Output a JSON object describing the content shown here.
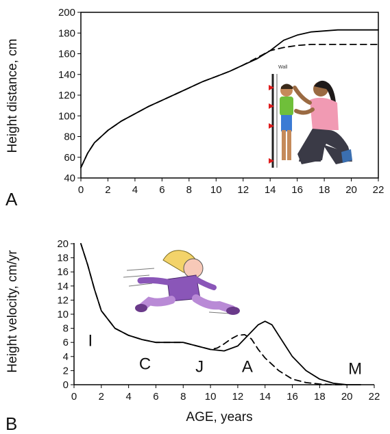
{
  "chart_data": [
    {
      "type": "line",
      "panel_label": "A",
      "ylabel": "Height distance, cm",
      "xlabel": "",
      "xlim": [
        0,
        22
      ],
      "ylim": [
        40,
        200
      ],
      "xticks": [
        0,
        2,
        4,
        6,
        8,
        10,
        12,
        14,
        16,
        18,
        20,
        22
      ],
      "yticks": [
        40,
        60,
        80,
        100,
        120,
        140,
        160,
        180,
        200
      ],
      "series": [
        {
          "style": "solid",
          "x": [
            0,
            0.5,
            1,
            1.5,
            2,
            3,
            4,
            5,
            6,
            7,
            8,
            9,
            10,
            11,
            12,
            13,
            14,
            14.5,
            15,
            16,
            17,
            18,
            19,
            20,
            21,
            22
          ],
          "y": [
            50,
            64,
            74,
            80,
            86,
            95,
            102,
            109,
            115,
            121,
            127,
            133,
            138,
            143,
            149,
            155,
            163,
            168,
            173,
            178,
            181,
            182,
            183,
            183,
            183,
            183
          ]
        },
        {
          "style": "dashed",
          "x": [
            0,
            0.5,
            1,
            1.5,
            2,
            3,
            4,
            5,
            6,
            7,
            8,
            9,
            10,
            11,
            12,
            13,
            14,
            15,
            16,
            17,
            18,
            20,
            22
          ],
          "y": [
            50,
            64,
            74,
            80,
            86,
            95,
            102,
            109,
            115,
            121,
            127,
            133,
            138,
            143,
            149,
            156,
            163,
            166,
            168,
            169,
            169,
            169,
            169
          ]
        }
      ],
      "illustration": "child-measuring-height-icon",
      "illustration_text": "Wall"
    },
    {
      "type": "line",
      "panel_label": "B",
      "ylabel": "Height velocity, cm/yr",
      "xlabel": "AGE, years",
      "xlim": [
        0,
        22
      ],
      "ylim": [
        0,
        20
      ],
      "xticks": [
        0,
        2,
        4,
        6,
        8,
        10,
        12,
        14,
        16,
        18,
        20,
        22
      ],
      "yticks": [
        0,
        2,
        4,
        6,
        8,
        10,
        12,
        14,
        16,
        18,
        20
      ],
      "series": [
        {
          "style": "solid",
          "x": [
            0.5,
            1,
            1.5,
            2,
            3,
            4,
            5,
            6,
            7,
            8,
            9,
            10,
            11,
            12,
            13,
            13.5,
            14,
            14.5,
            15,
            16,
            17,
            18,
            19,
            20,
            21
          ],
          "y": [
            20,
            17,
            13.5,
            10.5,
            8,
            7,
            6.4,
            6,
            6,
            6,
            5.5,
            5,
            4.8,
            5.5,
            7.5,
            8.5,
            9,
            8.5,
            7,
            4,
            2,
            0.8,
            0.2,
            0,
            0
          ]
        },
        {
          "style": "dashed",
          "x": [
            0.5,
            1,
            1.5,
            2,
            3,
            4,
            5,
            6,
            7,
            8,
            9,
            10,
            10.5,
            11,
            11.5,
            12,
            12.5,
            13,
            13.5,
            14,
            15,
            16,
            17,
            18,
            19,
            20
          ],
          "y": [
            20,
            17,
            13.5,
            10.5,
            8,
            7,
            6.4,
            6,
            6,
            6,
            5.5,
            5,
            5.2,
            5.8,
            6.5,
            7,
            7.1,
            6.5,
            5,
            3.8,
            2,
            0.8,
            0.3,
            0.1,
            0,
            0
          ]
        }
      ],
      "annotations": [
        {
          "text": "I",
          "x": 1.2,
          "y": 5.5
        },
        {
          "text": "C",
          "x": 5.2,
          "y": 2.2
        },
        {
          "text": "J",
          "x": 9.2,
          "y": 1.8
        },
        {
          "text": "A",
          "x": 12.7,
          "y": 1.8
        },
        {
          "text": "M",
          "x": 20.6,
          "y": 1.5
        }
      ],
      "illustration": "running-child-icon"
    }
  ]
}
